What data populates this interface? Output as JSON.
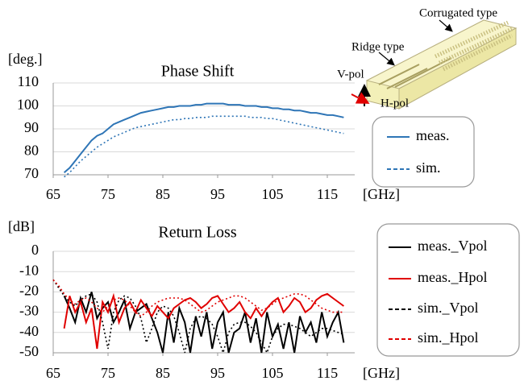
{
  "chart_data": [
    {
      "type": "line",
      "title": "Phase Shift",
      "y_label": "[deg.]",
      "x_label": "[GHz]",
      "x": [
        67,
        68,
        69,
        70,
        71,
        72,
        73,
        74,
        75,
        76,
        77,
        78,
        79,
        80,
        81,
        82,
        83,
        84,
        85,
        86,
        87,
        88,
        89,
        90,
        91,
        92,
        93,
        94,
        95,
        96,
        97,
        98,
        99,
        100,
        101,
        102,
        103,
        104,
        105,
        106,
        107,
        108,
        109,
        110,
        111,
        112,
        113,
        114,
        115,
        116,
        117,
        118
      ],
      "series": [
        {
          "name": "meas.",
          "color": "#2e75b6",
          "dash": "solid",
          "values": [
            71,
            73,
            76,
            79,
            82,
            85,
            87,
            88,
            90,
            92,
            93,
            94,
            95,
            96,
            97,
            97.5,
            98,
            98.5,
            99,
            99.5,
            99.5,
            100,
            100,
            100,
            100.5,
            100.5,
            101,
            101,
            101,
            101,
            100.5,
            100.5,
            100.5,
            100,
            100,
            100,
            99.5,
            99.5,
            99,
            99,
            98.5,
            98.5,
            98,
            98,
            97.5,
            97,
            97,
            96.5,
            96,
            96,
            95.5,
            95
          ]
        },
        {
          "name": "sim.",
          "color": "#2e75b6",
          "dash": "dotted",
          "values": [
            69,
            71,
            73.5,
            76,
            78,
            80,
            82,
            83.5,
            85,
            86.5,
            87.5,
            88.5,
            89.5,
            90.5,
            91,
            91.5,
            92,
            92.5,
            93,
            93.5,
            94,
            94,
            94.5,
            94.5,
            95,
            95,
            95,
            95.5,
            95.5,
            95.5,
            95.5,
            95.5,
            95.5,
            95.5,
            95,
            95,
            95,
            94.5,
            94.5,
            94,
            93.5,
            93,
            92.5,
            92,
            91.5,
            91,
            90.5,
            90,
            89.5,
            89,
            88.5,
            88
          ]
        }
      ],
      "xlim": [
        65,
        120
      ],
      "xticks": [
        65,
        75,
        85,
        95,
        105,
        115
      ],
      "ylim": [
        70,
        110
      ],
      "yticks": [
        70,
        80,
        90,
        100,
        110
      ],
      "grid": true
    },
    {
      "type": "line",
      "title": "Return Loss",
      "y_label": "[dB]",
      "x_label": "[GHz]",
      "x": [
        65,
        66,
        67,
        68,
        69,
        70,
        71,
        72,
        73,
        74,
        75,
        76,
        77,
        78,
        79,
        80,
        81,
        82,
        83,
        84,
        85,
        86,
        87,
        88,
        89,
        90,
        91,
        92,
        93,
        94,
        95,
        96,
        97,
        98,
        99,
        100,
        101,
        102,
        103,
        104,
        105,
        106,
        107,
        108,
        109,
        110,
        111,
        112,
        113,
        114,
        115,
        116,
        117,
        118
      ],
      "series": [
        {
          "name": "meas._Vpol",
          "color": "#000000",
          "dash": "solid",
          "values": [
            null,
            null,
            -22,
            -28,
            -35,
            -23,
            -30,
            -20,
            -33,
            -28,
            -25,
            -35,
            -30,
            -24,
            -38,
            -30,
            -28,
            -26,
            -33,
            -40,
            -50,
            -30,
            -45,
            -28,
            -35,
            -50,
            -32,
            -42,
            -30,
            -48,
            -35,
            -30,
            -50,
            -40,
            -38,
            -30,
            -45,
            -33,
            -50,
            -30,
            -42,
            -36,
            -48,
            -35,
            -50,
            -32,
            -40,
            -35,
            -45,
            -30,
            -42,
            -35,
            -30,
            -45
          ]
        },
        {
          "name": "meas._Hpol",
          "color": "#e00000",
          "dash": "solid",
          "values": [
            null,
            null,
            -38,
            -22,
            -30,
            -25,
            -35,
            -28,
            -48,
            -25,
            -30,
            -22,
            -35,
            -28,
            -25,
            -30,
            -24,
            -28,
            -32,
            -27,
            -30,
            -33,
            -28,
            -26,
            -24,
            -23,
            -25,
            -28,
            -26,
            -23,
            -22,
            -26,
            -30,
            -28,
            -25,
            -30,
            -33,
            -28,
            -32,
            -28,
            -25,
            -23,
            -30,
            -27,
            -23,
            -25,
            -30,
            -28,
            -24,
            -22,
            -21,
            -23,
            -25,
            -27
          ]
        },
        {
          "name": "sim._Vpol",
          "color": "#000000",
          "dash": "dotted",
          "values": [
            -14,
            -18,
            -22,
            -25,
            -27,
            -24,
            -22,
            -21,
            -25,
            -35,
            -48,
            -30,
            -24,
            -22,
            -23,
            -27,
            -33,
            -45,
            -38,
            -30,
            -27,
            -28,
            -32,
            -40,
            -50,
            -38,
            -33,
            -32,
            -33,
            -36,
            -42,
            -50,
            -40,
            -36,
            -35,
            -35,
            -37,
            -40,
            -45,
            -50,
            -42,
            -38,
            -36,
            -36,
            -37,
            -38,
            -40,
            -42,
            -40,
            -38,
            -38,
            -39,
            -40,
            -41
          ]
        },
        {
          "name": "sim._Hpol",
          "color": "#e00000",
          "dash": "dotted",
          "values": [
            -14,
            -17,
            -21,
            -24,
            -26,
            -24,
            -23,
            -25,
            -28,
            -30,
            -27,
            -24,
            -23,
            -24,
            -27,
            -30,
            -32,
            -30,
            -27,
            -25,
            -24,
            -23,
            -23,
            -23,
            -24,
            -26,
            -28,
            -30,
            -29,
            -27,
            -25,
            -24,
            -23,
            -22,
            -22,
            -23,
            -25,
            -27,
            -29,
            -28,
            -26,
            -24,
            -23,
            -22,
            -21,
            -21,
            -22,
            -24,
            -26,
            -28,
            -29,
            -30,
            -30,
            -30
          ]
        }
      ],
      "xlim": [
        65,
        120
      ],
      "xticks": [
        65,
        75,
        85,
        95,
        105,
        115
      ],
      "ylim": [
        -50,
        0
      ],
      "yticks": [
        0,
        -10,
        -20,
        -30,
        -40,
        -50
      ],
      "grid": true
    }
  ],
  "illustration": {
    "labels": [
      "Corrugated type",
      "Ridge type",
      "V-pol",
      "H-pol"
    ],
    "label_colors": [
      "#000000",
      "#000000",
      "#000000",
      "#e00000"
    ]
  }
}
